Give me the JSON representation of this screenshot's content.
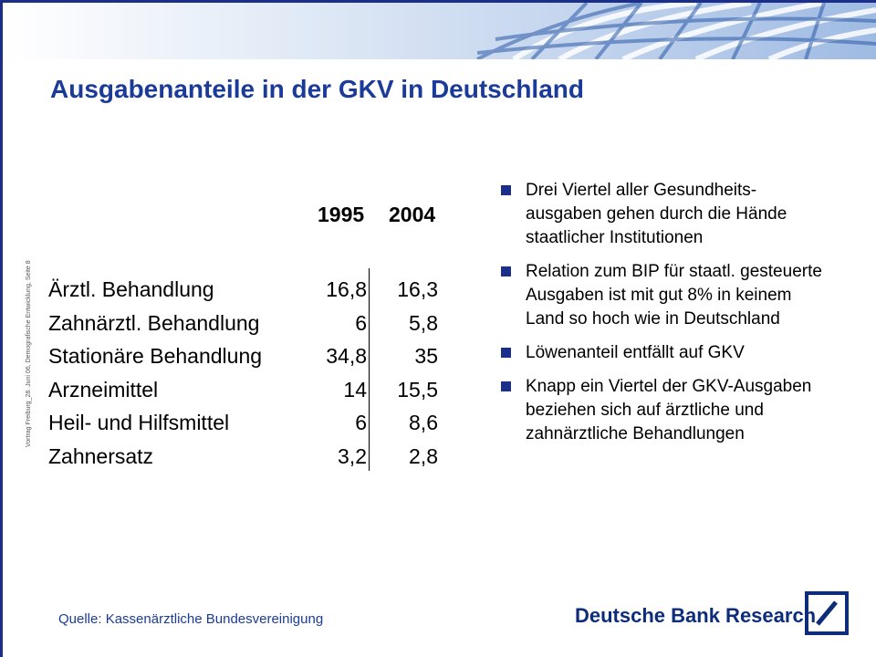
{
  "slide": {
    "title": "Ausgabenanteile in der GKV in Deutschland",
    "side_note": "Vortrag Freiburg_28. Juni 06, Demografische Entwicklung, Seite 8",
    "table": {
      "headers": [
        "1995",
        "2004"
      ],
      "rows": [
        {
          "category": "Ärztl. Behandlung",
          "v1995": "16,8",
          "v2004": "16,3"
        },
        {
          "category": "Zahnärztl. Behandlung",
          "v1995": "6",
          "v2004": "5,8"
        },
        {
          "category": "Stationäre Behandlung",
          "v1995": "34,8",
          "v2004": "35"
        },
        {
          "category": "Arzneimittel",
          "v1995": "14",
          "v2004": "15,5"
        },
        {
          "category": "Heil- und Hilfsmittel",
          "v1995": "6",
          "v2004": "8,6"
        },
        {
          "category": "Zahnersatz",
          "v1995": "3,2",
          "v2004": "2,8"
        }
      ]
    },
    "bullets": [
      "Drei Viertel aller Gesundheits-ausgaben gehen durch die Hände staatlicher Institutionen",
      "Relation zum BIP für staatl. gesteuerte Ausgaben ist mit gut 8% in keinem Land so hoch wie in Deutschland",
      "Löwenanteil entfällt auf GKV",
      "Knapp ein Viertel der GKV-Ausgaben beziehen sich auf ärztliche und zahnärztliche Behandlungen"
    ],
    "source": "Quelle: Kassenärztliche Bundesvereinigung",
    "logo_text": "Deutsche Bank Research",
    "colors": {
      "title": "#1b3b9a",
      "brand": "#0d2d7a",
      "bullet": "#1b2f8a"
    }
  }
}
